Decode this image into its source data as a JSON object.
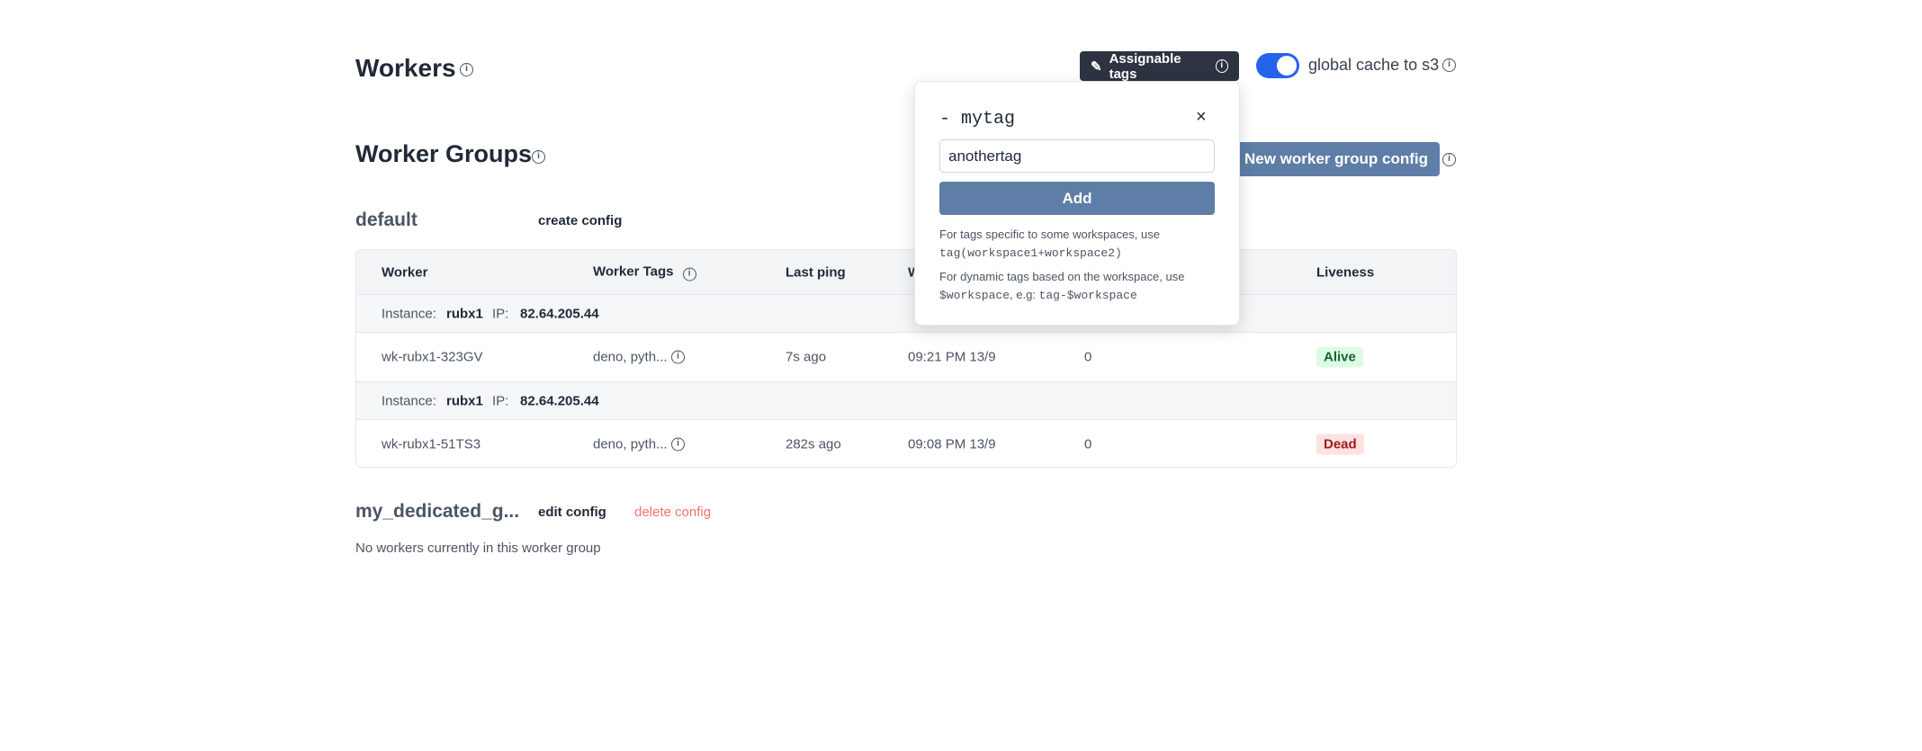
{
  "header": {
    "title": "Workers",
    "assignable_tags_label": "Assignable tags",
    "global_cache_label": "global cache to s3",
    "global_cache_enabled": true
  },
  "worker_groups": {
    "title": "Worker Groups",
    "new_config_label": "+ New worker group config"
  },
  "popover": {
    "tag": "- mytag",
    "input_value": "anothertag",
    "add_label": "Add",
    "help1": "For tags specific to some workspaces, use",
    "help1_code": "tag(workspace1+workspace2)",
    "help2": "For dynamic tags based on the workspace, use",
    "help2_code1": "$workspace",
    "help2_mid": ", e.g: ",
    "help2_code2": "tag-$workspace"
  },
  "groups": [
    {
      "name": "default",
      "action": "create config",
      "columns": [
        "Worker",
        "Worker Tags",
        "Last ping",
        "W",
        "",
        "Liveness"
      ],
      "rows": [
        {
          "instance_label": "Instance:",
          "instance": "rubx1",
          "ip_label": "IP:",
          "ip": "82.64.205.44",
          "worker": "wk-rubx1-323GV",
          "tags": "deno, pyth...",
          "last_ping": "7s ago",
          "started": "09:21 PM 13/9",
          "jobs": "0",
          "liveness": "Alive"
        },
        {
          "instance_label": "Instance:",
          "instance": "rubx1",
          "ip_label": "IP:",
          "ip": "82.64.205.44",
          "worker": "wk-rubx1-51TS3",
          "tags": "deno, pyth...",
          "last_ping": "282s ago",
          "started": "09:08 PM 13/9",
          "jobs": "0",
          "liveness": "Dead"
        }
      ]
    },
    {
      "name": "my_dedicated_g...",
      "edit": "edit config",
      "delete": "delete config",
      "empty": "No workers currently in this worker group"
    }
  ],
  "colors": {
    "alive_bg": "#dcfce7",
    "alive_fg": "#166534",
    "dead_bg": "#fee2e2",
    "dead_fg": "#991b1b",
    "accent": "#2563eb",
    "delete": "#f87171"
  }
}
